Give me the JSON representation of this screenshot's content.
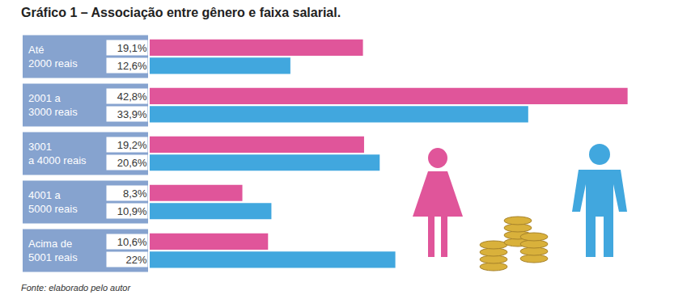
{
  "chart_data": {
    "type": "bar",
    "orientation": "horizontal",
    "title": "Gráfico 1 – Associação entre gênero e faixa salarial.",
    "categories": [
      "Até\n2000 reais",
      "2001 a\n3000 reais",
      "3001\na 4000 reais",
      "4001 a\n5000 reais",
      "Acima de\n5001 reais"
    ],
    "series": [
      {
        "color": "#e0559a",
        "values": [
          19.1,
          42.8,
          19.2,
          8.3,
          10.6
        ],
        "value_labels": [
          "19,1%",
          "42,8%",
          "19,2%",
          "8,3%",
          "10,6%"
        ]
      },
      {
        "color": "#41a7de",
        "values": [
          12.6,
          33.9,
          20.6,
          10.9,
          22
        ],
        "value_labels": [
          "12,6%",
          "33,9%",
          "20,6%",
          "10,9%",
          "22%"
        ]
      }
    ],
    "xlim": [
      0,
      45
    ],
    "data_labels": true,
    "grid": false,
    "annotations": [
      "Fonte: elaborado pelo autor"
    ]
  }
}
